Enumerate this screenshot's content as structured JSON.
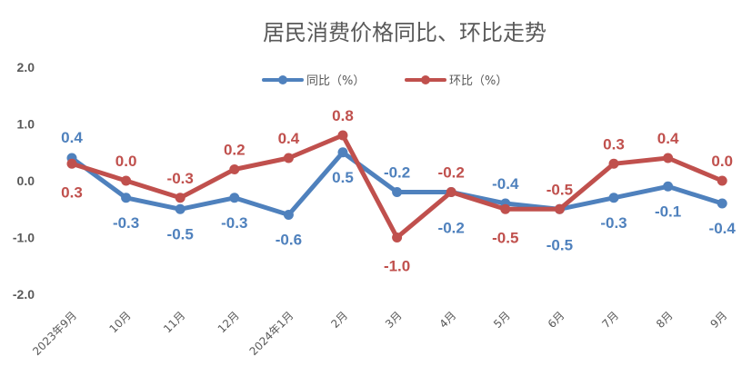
{
  "chart_data": {
    "type": "line",
    "title": "居民消费价格同比、环比走势",
    "categories": [
      "2023年9月",
      "10月",
      "11月",
      "12月",
      "2024年1月",
      "2月",
      "3月",
      "4月",
      "5月",
      "6月",
      "7月",
      "8月",
      "9月"
    ],
    "series": [
      {
        "name": "同比（%）",
        "color": "#4F81BD",
        "values": [
          0.4,
          -0.3,
          -0.5,
          -0.3,
          -0.6,
          0.5,
          -0.2,
          -0.2,
          -0.4,
          -0.5,
          -0.3,
          -0.1,
          -0.4
        ],
        "labels": [
          "0.4",
          "-0.3",
          "-0.5",
          "-0.3",
          "-0.6",
          "0.5",
          "-0.2",
          "-0.2",
          "-0.4",
          "-0.5",
          "-0.3",
          "-0.1",
          "-0.4"
        ]
      },
      {
        "name": "环比（%）",
        "color": "#C0504D",
        "values": [
          0.3,
          0.0,
          -0.3,
          0.2,
          0.4,
          0.8,
          -1.0,
          -0.2,
          -0.5,
          -0.5,
          0.3,
          0.4,
          0.0
        ],
        "labels": [
          "0.3",
          "0.0",
          "-0.3",
          "0.2",
          "0.4",
          "0.8",
          "-1.0",
          "-0.2",
          "-0.5",
          "-0.5",
          "0.3",
          "0.4",
          "0.0"
        ]
      }
    ],
    "yticks": [
      "2.0",
      "1.0",
      "0.0",
      "-1.0",
      "-2.0"
    ],
    "ytick_values": [
      2,
      1,
      0,
      -1,
      -2
    ],
    "ylim": [
      -2,
      2
    ],
    "grid": false,
    "legend": "top-center"
  }
}
